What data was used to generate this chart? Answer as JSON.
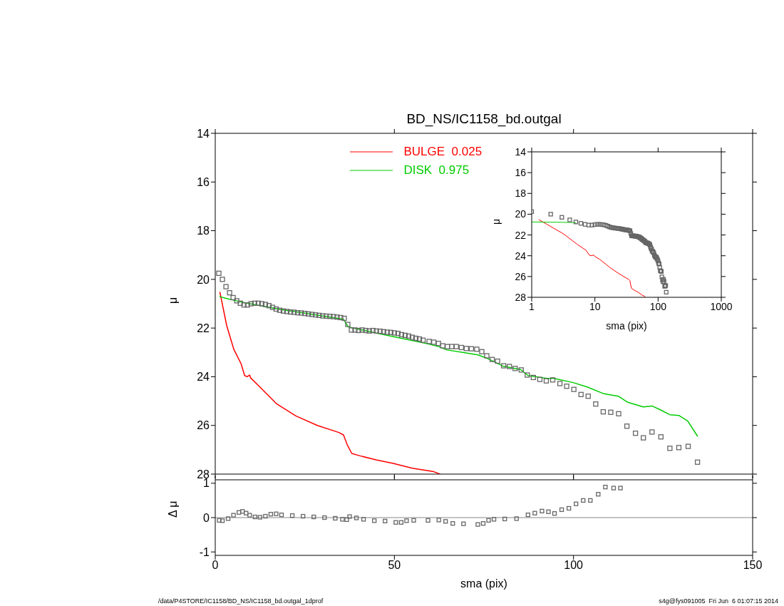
{
  "chart_data": [
    {
      "type": "line",
      "title": "BD_NS/IC1158_bd.outgal",
      "ylabel": "μ",
      "xlim": [
        0,
        150
      ],
      "xticks": [
        0,
        50,
        100,
        150
      ],
      "ylim": [
        28,
        14
      ],
      "yticks": [
        14,
        16,
        18,
        20,
        22,
        24,
        26,
        28
      ],
      "tick_labels": "y",
      "legend": "top",
      "annotations": [
        "/data/P4STORE/IC1158/BD_NS/IC1158_bd.outgal_1dprof",
        "s4g@fys091005  Fri Jun  6 01:07:15 2014"
      ],
      "series": [
        {
          "type": "scatter",
          "marker": "square",
          "color": "#666666",
          "x": [
            1,
            2,
            3,
            4,
            5,
            6,
            7,
            8,
            9,
            10,
            11,
            12,
            13,
            14,
            15,
            16,
            17,
            18,
            19,
            20,
            21,
            22,
            23,
            24,
            25,
            26,
            27,
            28,
            29,
            30,
            31,
            32,
            33,
            34,
            35,
            36,
            37,
            38,
            39,
            40,
            41,
            42,
            43,
            44,
            45,
            46,
            47,
            48,
            49,
            50,
            51,
            52,
            53,
            54,
            55,
            56,
            57,
            58,
            59.7,
            61,
            62.3,
            63.5,
            64.8,
            66,
            67.3,
            68.7,
            70.1,
            71.5,
            73,
            74.4,
            75.8,
            77.3,
            78.8,
            80.5,
            82.1,
            83.7,
            85.4,
            87.1,
            88.8,
            90.6,
            92.4,
            94.2,
            96.2,
            98.1,
            100.1,
            102.1,
            104.1,
            106.2,
            108.3,
            110.4,
            112.6,
            114.9,
            117.3,
            119.5,
            121.9,
            124.4,
            126.9,
            129.4,
            132,
            134.6
          ],
          "values": [
            19.75,
            20.0,
            20.3,
            20.55,
            20.75,
            20.88,
            20.98,
            21.05,
            21.05,
            21.0,
            20.98,
            20.98,
            21.0,
            21.03,
            21.08,
            21.15,
            21.22,
            21.27,
            21.3,
            21.32,
            21.34,
            21.35,
            21.37,
            21.38,
            21.4,
            21.42,
            21.44,
            21.46,
            21.48,
            21.5,
            21.51,
            21.52,
            21.53,
            21.55,
            21.57,
            21.6,
            21.85,
            22.08,
            22.08,
            22.1,
            22.08,
            22.1,
            22.12,
            22.1,
            22.12,
            22.13,
            22.15,
            22.17,
            22.18,
            22.2,
            22.22,
            22.27,
            22.3,
            22.33,
            22.38,
            22.42,
            22.45,
            22.5,
            22.55,
            22.58,
            22.63,
            22.73,
            22.76,
            22.76,
            22.76,
            22.8,
            22.84,
            22.85,
            22.87,
            22.97,
            23.14,
            23.29,
            23.36,
            23.55,
            23.58,
            23.66,
            23.72,
            23.93,
            24.03,
            24.11,
            24.17,
            24.13,
            24.28,
            24.39,
            24.52,
            24.73,
            24.8,
            25.12,
            25.44,
            25.46,
            25.52,
            26.03,
            26.32,
            26.51,
            26.27,
            26.47,
            26.94,
            26.91,
            26.86,
            27.51
          ]
        },
        {
          "name": "BULGE  0.025",
          "marker": "none",
          "color": "#ff0000",
          "x": [
            1.3,
            3.2,
            5.2,
            7.2,
            8.2,
            8.9,
            9.6,
            9.9,
            11.9,
            17.2,
            22.5,
            28.5,
            34.5,
            35.8,
            36.8,
            38.1,
            40.4,
            45.1,
            49.7,
            55,
            61,
            62.7
          ],
          "values": [
            20.53,
            21.9,
            22.88,
            23.46,
            23.95,
            24.0,
            23.93,
            24.05,
            24.34,
            25.12,
            25.61,
            26.0,
            26.29,
            26.39,
            26.78,
            27.15,
            27.25,
            27.42,
            27.56,
            27.76,
            27.9,
            28.0
          ]
        },
        {
          "name": "DISK  0.975",
          "marker": "none",
          "color": "#00cc00",
          "x": [
            1.3,
            3,
            5,
            8.6,
            17.9,
            35.8,
            37.1,
            45,
            59.4,
            62.3,
            64.7,
            70,
            73.3,
            76,
            80.3,
            85.3,
            87.3,
            92.6,
            94.6,
            99.9,
            103.8,
            108.5,
            112.5,
            115,
            119.5,
            121.9,
            124.1,
            126.9,
            129.4,
            131.9,
            134.6
          ],
          "values": [
            20.71,
            20.78,
            20.85,
            20.97,
            21.23,
            21.64,
            21.95,
            22.21,
            22.65,
            22.76,
            22.9,
            23.02,
            23.1,
            23.25,
            23.56,
            23.71,
            23.95,
            24.07,
            24.07,
            24.24,
            24.42,
            24.7,
            24.8,
            25.04,
            25.24,
            25.2,
            25.35,
            25.56,
            25.59,
            25.82,
            26.44
          ]
        }
      ]
    },
    {
      "type": "scatter",
      "xlabel": "sma (pix)",
      "ylabel": "Δ μ",
      "xlim": [
        0,
        150
      ],
      "xticks": [
        0,
        50,
        100,
        150
      ],
      "ylim": [
        -1.1,
        1.1
      ],
      "yticks": [
        -1,
        0,
        1
      ],
      "marker": "square",
      "color": "#666666",
      "ref_lines": [
        {
          "axis": "y",
          "value": 0,
          "color": "#888888"
        }
      ],
      "x": [
        1.1,
        2,
        3.6,
        5.1,
        6.6,
        7.6,
        8.6,
        9.6,
        11.1,
        12.5,
        14,
        15.5,
        17,
        18.5,
        21.5,
        24.5,
        27.5,
        30.5,
        33.5,
        35.5,
        36.7,
        37.5,
        39.4,
        41.4,
        44.4,
        47.4,
        50.4,
        51.9,
        53.4,
        55.4,
        59.4,
        62.4,
        64.3,
        66.3,
        69.3,
        73.3,
        74.8,
        76.3,
        77.8,
        80.8,
        84.1,
        87.3,
        89.2,
        91.2,
        93,
        94.7,
        96.7,
        98.7,
        100.7,
        102.7,
        104.7,
        106.9,
        108.9,
        111.2,
        113.1
      ],
      "values": [
        -0.08,
        -0.09,
        -0.03,
        0.07,
        0.15,
        0.18,
        0.13,
        0.07,
        0.02,
        0.01,
        0.04,
        0.1,
        0.11,
        0.08,
        0.06,
        0.04,
        0.02,
        0.0,
        -0.02,
        -0.05,
        -0.06,
        0.03,
        -0.01,
        -0.05,
        -0.09,
        -0.1,
        -0.14,
        -0.14,
        -0.09,
        -0.08,
        -0.08,
        -0.07,
        -0.11,
        -0.17,
        -0.18,
        -0.2,
        -0.17,
        -0.08,
        -0.05,
        -0.04,
        -0.03,
        0.08,
        0.13,
        0.19,
        0.17,
        0.12,
        0.23,
        0.27,
        0.4,
        0.5,
        0.5,
        0.68,
        0.89,
        0.86,
        0.86
      ]
    },
    {
      "type": "line",
      "xlabel": "sma (pix)",
      "ylabel": "μ",
      "log": "x",
      "xlim": [
        1,
        1000
      ],
      "xticks": [
        1,
        10,
        100,
        1000
      ],
      "ylim": [
        28,
        14
      ],
      "yticks": [
        14,
        16,
        18,
        20,
        22,
        24,
        26,
        28
      ],
      "series": [
        {
          "type": "scatter",
          "marker": "square",
          "color": "#666666",
          "x": [
            1,
            2,
            3,
            4,
            5,
            6,
            7,
            8,
            9,
            10,
            11,
            12,
            13,
            14,
            15,
            16,
            17,
            18,
            19,
            20,
            21,
            22,
            23,
            24,
            25,
            26,
            27,
            28,
            29,
            30,
            31,
            32,
            33,
            34,
            35,
            36,
            37,
            38,
            39,
            40,
            41,
            42,
            43,
            44,
            45,
            46,
            47,
            48,
            49,
            50,
            51,
            52,
            53,
            54,
            55,
            56,
            57,
            58,
            59.7,
            61,
            62.3,
            63.5,
            64.8,
            66,
            67.3,
            68.7,
            70.1,
            71.5,
            73,
            74.4,
            75.8,
            77.3,
            78.8,
            80.5,
            82.1,
            83.7,
            85.4,
            87.1,
            88.8,
            90.6,
            92.4,
            94.2,
            96.2,
            98.1,
            100.1,
            102.1,
            104.1,
            106.2,
            108.3,
            110.4,
            112.6,
            114.9,
            117.3,
            119.5,
            121.9,
            124.4,
            126.9,
            129.4,
            132,
            134.6
          ],
          "values": [
            19.75,
            20.0,
            20.3,
            20.55,
            20.75,
            20.88,
            20.98,
            21.05,
            21.05,
            21.0,
            20.98,
            20.98,
            21.0,
            21.03,
            21.08,
            21.15,
            21.22,
            21.27,
            21.3,
            21.32,
            21.34,
            21.35,
            21.37,
            21.38,
            21.4,
            21.42,
            21.44,
            21.46,
            21.48,
            21.5,
            21.51,
            21.52,
            21.53,
            21.55,
            21.57,
            21.6,
            21.85,
            22.08,
            22.08,
            22.1,
            22.08,
            22.1,
            22.12,
            22.1,
            22.12,
            22.13,
            22.15,
            22.17,
            22.18,
            22.2,
            22.22,
            22.27,
            22.3,
            22.33,
            22.38,
            22.42,
            22.45,
            22.5,
            22.55,
            22.58,
            22.63,
            22.73,
            22.76,
            22.76,
            22.76,
            22.8,
            22.84,
            22.85,
            22.87,
            22.97,
            23.14,
            23.29,
            23.36,
            23.55,
            23.58,
            23.66,
            23.72,
            23.93,
            24.03,
            24.11,
            24.17,
            24.13,
            24.28,
            24.39,
            24.52,
            24.73,
            24.8,
            25.12,
            25.44,
            25.46,
            25.52,
            26.03,
            26.32,
            26.51,
            26.27,
            26.47,
            26.94,
            26.91,
            26.86,
            27.51
          ]
        },
        {
          "marker": "none",
          "color": "#ff0000",
          "x": [
            1.3,
            3.2,
            5.2,
            7.2,
            8.2,
            8.9,
            9.6,
            9.9,
            11.9,
            17.2,
            22.5,
            28.5,
            34.5,
            35.8,
            36.8,
            38.1,
            40.4,
            45.1,
            49.7,
            55,
            61,
            62.7
          ],
          "values": [
            20.53,
            21.9,
            22.88,
            23.46,
            23.95,
            24.0,
            23.93,
            24.05,
            24.34,
            25.12,
            25.61,
            26.0,
            26.29,
            26.39,
            26.78,
            27.15,
            27.25,
            27.42,
            27.56,
            27.76,
            27.9,
            28.0
          ]
        },
        {
          "marker": "none",
          "color": "#00cc00",
          "x": [
            1,
            2,
            3,
            4,
            5
          ],
          "values": [
            20.75,
            20.77,
            20.78,
            20.8,
            20.82
          ]
        }
      ]
    }
  ]
}
